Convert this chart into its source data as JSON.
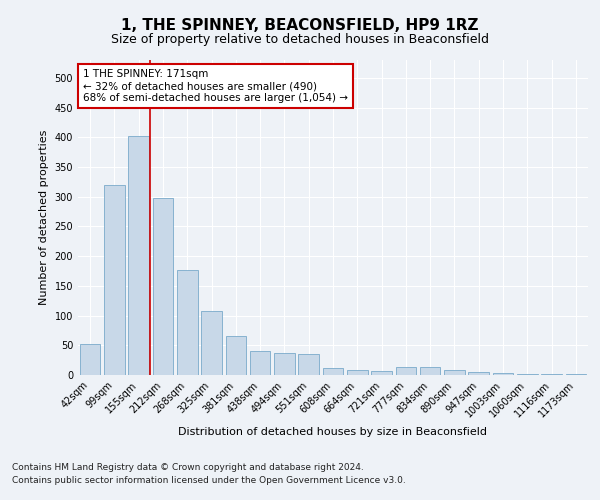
{
  "title": "1, THE SPINNEY, BEACONSFIELD, HP9 1RZ",
  "subtitle": "Size of property relative to detached houses in Beaconsfield",
  "xlabel": "Distribution of detached houses by size in Beaconsfield",
  "ylabel": "Number of detached properties",
  "footnote1": "Contains HM Land Registry data © Crown copyright and database right 2024.",
  "footnote2": "Contains public sector information licensed under the Open Government Licence v3.0.",
  "bar_color": "#c8d8e8",
  "bar_edge_color": "#7aaacb",
  "vline_color": "#cc0000",
  "vline_position": 2.45,
  "annotation_text": "1 THE SPINNEY: 171sqm\n← 32% of detached houses are smaller (490)\n68% of semi-detached houses are larger (1,054) →",
  "annotation_box_color": "#cc0000",
  "categories": [
    "42sqm",
    "99sqm",
    "155sqm",
    "212sqm",
    "268sqm",
    "325sqm",
    "381sqm",
    "438sqm",
    "494sqm",
    "551sqm",
    "608sqm",
    "664sqm",
    "721sqm",
    "777sqm",
    "834sqm",
    "890sqm",
    "947sqm",
    "1003sqm",
    "1060sqm",
    "1116sqm",
    "1173sqm"
  ],
  "values": [
    52,
    320,
    402,
    297,
    177,
    108,
    65,
    40,
    37,
    35,
    11,
    8,
    7,
    13,
    14,
    9,
    5,
    4,
    2,
    1,
    1
  ],
  "ylim": [
    0,
    530
  ],
  "yticks": [
    0,
    50,
    100,
    150,
    200,
    250,
    300,
    350,
    400,
    450,
    500
  ],
  "background_color": "#eef2f7",
  "plot_bg_color": "#eef2f7",
  "grid_color": "#ffffff",
  "title_fontsize": 11,
  "subtitle_fontsize": 9,
  "axis_label_fontsize": 8,
  "tick_fontsize": 7,
  "footnote_fontsize": 6.5,
  "annotation_fontsize": 7.5
}
